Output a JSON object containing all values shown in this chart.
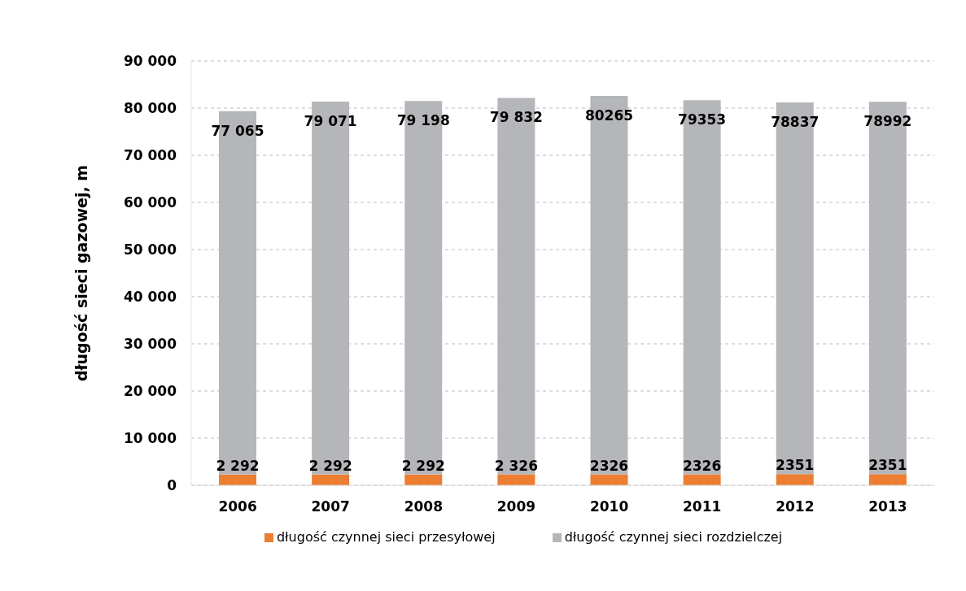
{
  "chart_data": {
    "type": "bar",
    "stacked": true,
    "ylabel": "długość sieci gazowej, m",
    "categories": [
      "2006",
      "2007",
      "2008",
      "2009",
      "2010",
      "2011",
      "2012",
      "2013"
    ],
    "series": [
      {
        "name": "długość czynnej sieci przesyłowej",
        "color": "#ed7d31",
        "values": [
          2292,
          2292,
          2292,
          2326,
          2326,
          2326,
          2351,
          2351
        ],
        "value_labels": [
          "2 292",
          "2 292",
          "2 292",
          "2 326",
          "2326",
          "2326",
          "2351",
          "2351"
        ]
      },
      {
        "name": "długość czynnej sieci rozdzielczej",
        "color": "#b5b6b9",
        "values": [
          77065,
          79071,
          79198,
          79832,
          80265,
          79353,
          78837,
          78992
        ],
        "value_labels": [
          "77 065",
          "79 071",
          "79 198",
          "79 832",
          "80265",
          "79353",
          "78837",
          "78992"
        ]
      }
    ],
    "ylim": [
      0,
      90000
    ],
    "yticks": [
      0,
      {
        "value": 10000,
        "label": "10 000"
      },
      {
        "value": 20000,
        "label": "20 000"
      },
      {
        "value": 30000,
        "label": "30 000"
      },
      {
        "value": 40000,
        "label": "40 000"
      },
      {
        "value": 50000,
        "label": "50 000"
      },
      {
        "value": 60000,
        "label": "60 000"
      },
      {
        "value": 70000,
        "label": "70 000"
      },
      {
        "value": 80000,
        "label": "80 000"
      },
      {
        "value": 90000,
        "label": "90 000"
      }
    ],
    "grid": "y",
    "legend": "bottom"
  }
}
